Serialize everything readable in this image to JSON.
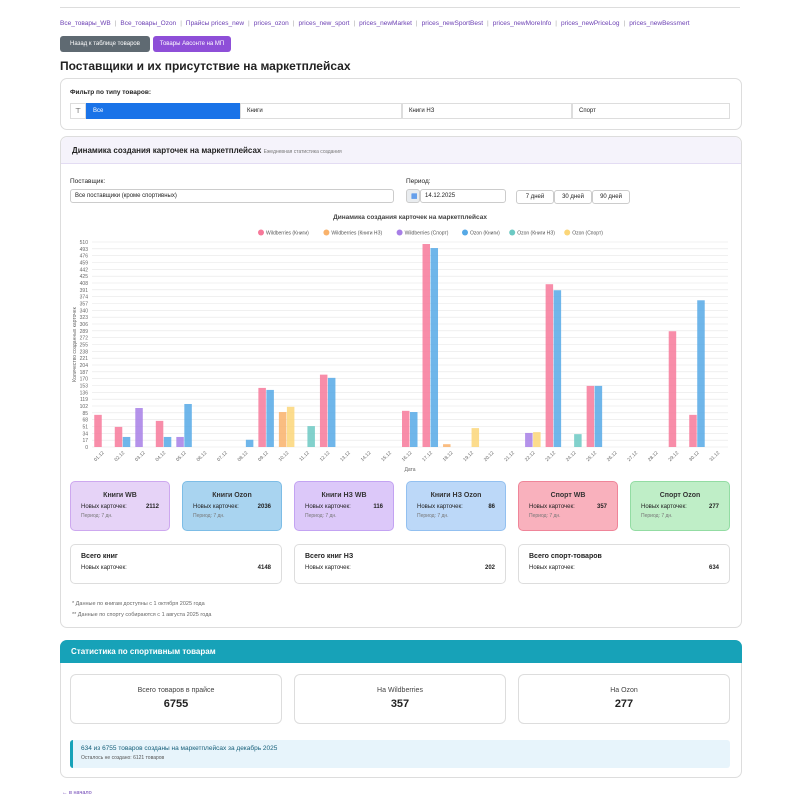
{
  "nav_links": [
    "Все_товары_WB",
    "Все_товары_Ozon",
    "Прайсы prices_new",
    "prices_ozon",
    "prices_new_sport",
    "prices_newMarket",
    "prices_newSportBest",
    "prices_newMoreInfo",
    "prices_newPriceLog",
    "prices_newBessmert"
  ],
  "buttons": [
    "Назад к таблице товаров",
    "Товары Авсонте на МП"
  ],
  "heading": "Поставщики и их присутствие на маркетплейсах",
  "filter": {
    "label": "Фильтр по типу товаров:",
    "tabs": [
      "Все",
      "Книги",
      "Книги НЗ",
      "Спорт"
    ]
  },
  "dynamics": {
    "title": "Динамика создания карточек на маркетплейсах",
    "subtitle": "Ежедневная статистика создания",
    "supplier_label": "Поставщик:",
    "supplier_value": "Все поставщики (кроме спортивных)",
    "period_label": "Период:",
    "period_value": "14.12.2025",
    "period_buttons": [
      "7 дней",
      "30 дней",
      "90 дней"
    ]
  },
  "chart_data": {
    "type": "bar",
    "title": "Динамика создания карточек на маркетплейсах",
    "x_label": "Дата",
    "y_label": "Количество созданных карточек",
    "categories": [
      "01.12",
      "02.12",
      "03.12",
      "04.12",
      "05.12",
      "06.12",
      "07.12",
      "08.12",
      "09.12",
      "10.12",
      "11.12",
      "12.12",
      "13.12",
      "14.12",
      "15.12",
      "16.12",
      "17.12",
      "18.12",
      "19.12",
      "20.12",
      "21.12",
      "22.12",
      "23.12",
      "24.12",
      "25.12",
      "26.12",
      "27.12",
      "28.12",
      "29.12",
      "30.12",
      "31.12"
    ],
    "series": [
      {
        "name": "Wildberries (Книги)",
        "color": "#f7799a",
        "values": [
          80,
          50,
          0,
          65,
          0,
          0,
          0,
          0,
          147,
          0,
          0,
          180,
          0,
          0,
          0,
          90,
          505,
          0,
          0,
          0,
          0,
          0,
          405,
          0,
          152,
          0,
          0,
          0,
          288,
          80,
          0
        ]
      },
      {
        "name": "Wildberries (Книги НЗ)",
        "color": "#f9b26b",
        "values": [
          0,
          0,
          0,
          0,
          0,
          0,
          0,
          0,
          0,
          87,
          0,
          0,
          0,
          0,
          0,
          0,
          0,
          7,
          0,
          0,
          0,
          0,
          0,
          0,
          0,
          0,
          0,
          0,
          0,
          0,
          0
        ]
      },
      {
        "name": "Wildberries (Спорт)",
        "color": "#a77fe6",
        "values": [
          0,
          0,
          97,
          0,
          25,
          0,
          0,
          0,
          0,
          0,
          0,
          0,
          0,
          0,
          0,
          0,
          0,
          0,
          0,
          0,
          0,
          35,
          0,
          0,
          0,
          0,
          0,
          0,
          0,
          0,
          0
        ]
      },
      {
        "name": "Ozon (Книги)",
        "color": "#56a9e6",
        "values": [
          0,
          25,
          0,
          25,
          107,
          0,
          0,
          18,
          142,
          0,
          0,
          172,
          0,
          0,
          0,
          87,
          495,
          0,
          0,
          0,
          0,
          0,
          390,
          0,
          152,
          0,
          0,
          0,
          0,
          365,
          0
        ]
      },
      {
        "name": "Ozon (Книги НЗ)",
        "color": "#6cc9c3",
        "values": [
          0,
          0,
          0,
          0,
          0,
          0,
          0,
          0,
          0,
          0,
          52,
          0,
          0,
          0,
          0,
          0,
          0,
          0,
          0,
          0,
          0,
          0,
          0,
          32,
          0,
          0,
          0,
          0,
          0,
          0,
          0
        ]
      },
      {
        "name": "Ozon (Спорт)",
        "color": "#fbd679",
        "values": [
          0,
          0,
          0,
          0,
          0,
          0,
          0,
          0,
          0,
          100,
          0,
          0,
          0,
          0,
          0,
          0,
          0,
          0,
          47,
          0,
          0,
          37,
          0,
          0,
          0,
          0,
          0,
          0,
          0,
          0,
          0
        ]
      }
    ],
    "ylim": [
      0,
      510
    ],
    "yticks": [
      0,
      17,
      34,
      51,
      68,
      85,
      102,
      119,
      136,
      153,
      170,
      187,
      204,
      221,
      238,
      255,
      272,
      289,
      306,
      323,
      340,
      357,
      374,
      391,
      408,
      425,
      442,
      459,
      476,
      493,
      510
    ],
    "grid": true,
    "legend": "top"
  },
  "stat_cards": [
    {
      "title": "Книги WB",
      "label": "Новых карточек:",
      "value": 2112,
      "sub": "Период: 7 дн."
    },
    {
      "title": "Книги Ozon",
      "label": "Новых карточек:",
      "value": 2036,
      "sub": "Период: 7 дн."
    },
    {
      "title": "Книги НЗ WB",
      "label": "Новых карточек:",
      "value": 116,
      "sub": "Период: 7 дн."
    },
    {
      "title": "Книги НЗ Ozon",
      "label": "Новых карточек:",
      "value": 86,
      "sub": "Период: 7 дн."
    },
    {
      "title": "Спорт WB",
      "label": "Новых карточек:",
      "value": 357,
      "sub": "Период: 7 дн."
    },
    {
      "title": "Спорт Ozon",
      "label": "Новых карточек:",
      "value": 277,
      "sub": "Период: 7 дн."
    }
  ],
  "total_cards": [
    {
      "title": "Всего книг",
      "label": "Новых карточек:",
      "value": 4148
    },
    {
      "title": "Всего книг НЗ",
      "label": "Новых карточек:",
      "value": 202
    },
    {
      "title": "Всего спорт-товаров",
      "label": "Новых карточек:",
      "value": 634
    }
  ],
  "notes": [
    "* Данные по книгам доступны с 1 октября 2025 года",
    "** Данные по спорту собираются с 1 августа 2025 года"
  ],
  "sport": {
    "title": "Статистика по спортивным товарам",
    "boxes": [
      {
        "label": "Всего товаров в прайсе",
        "value": 6755
      },
      {
        "label": "На Wildberries",
        "value": 357
      },
      {
        "label": "На Ozon",
        "value": 277
      }
    ],
    "info": "634 из 6755 товаров созданы на маркетплейсах за декабрь 2025",
    "info_sub": "Осталось не создано: 6121 товаров"
  },
  "footer": "← в начало"
}
